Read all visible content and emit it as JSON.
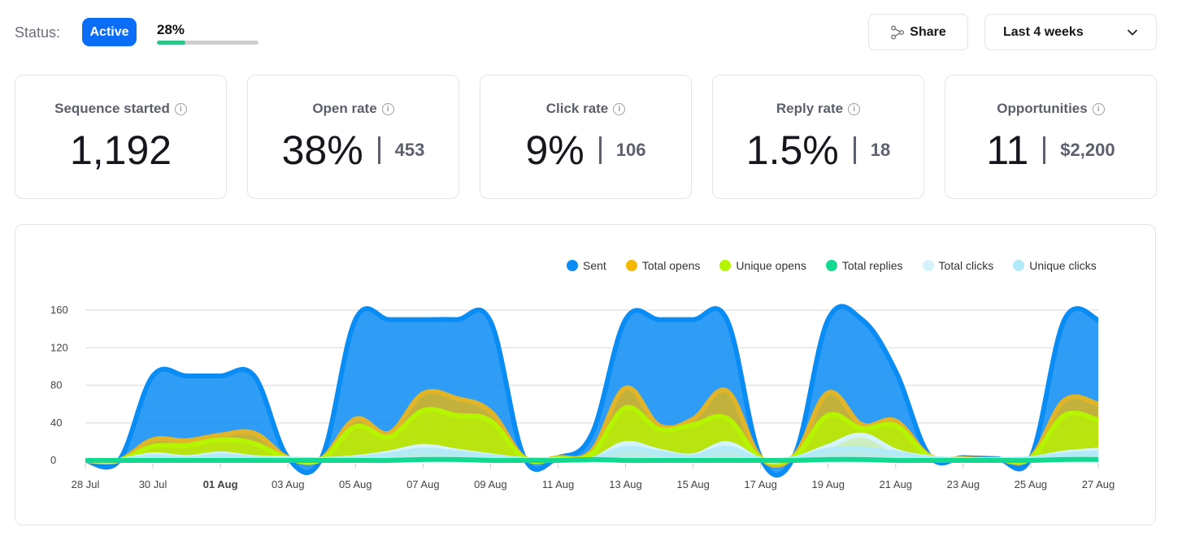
{
  "status": {
    "label": "Status:",
    "badge": "Active",
    "progress_text": "28%",
    "progress_value": 28
  },
  "toolbar": {
    "share_label": "Share",
    "range_label": "Last 4 weeks"
  },
  "cards": [
    {
      "title": "Sequence started",
      "value": "1,192"
    },
    {
      "title": "Open rate",
      "value": "38%",
      "count": "453"
    },
    {
      "title": "Click rate",
      "value": "9%",
      "count": "106"
    },
    {
      "title": "Reply rate",
      "value": "1.5%",
      "count": "18"
    },
    {
      "title": "Opportunities",
      "value": "11",
      "count": "$2,200"
    }
  ],
  "chart_data": {
    "type": "area",
    "title": "",
    "xlabel": "",
    "ylabel": "",
    "ylim": [
      0,
      160
    ],
    "yticks": [
      "0",
      "40",
      "80",
      "120",
      "160"
    ],
    "xtick_labels": [
      "28 Jul",
      "30 Jul",
      "01 Aug",
      "03 Aug",
      "05 Aug",
      "07 Aug",
      "09 Aug",
      "11 Aug",
      "13 Aug",
      "15 Aug",
      "17 Aug",
      "19 Aug",
      "21 Aug",
      "23 Aug",
      "25 Aug",
      "27 Aug"
    ],
    "highlighted_tick": "01 Aug",
    "x": [
      "28 Jul",
      "29 Jul",
      "30 Jul",
      "31 Jul",
      "01 Aug",
      "02 Aug",
      "03 Aug",
      "04 Aug",
      "05 Aug",
      "06 Aug",
      "07 Aug",
      "08 Aug",
      "09 Aug",
      "10 Aug",
      "11 Aug",
      "12 Aug",
      "13 Aug",
      "14 Aug",
      "15 Aug",
      "16 Aug",
      "17 Aug",
      "18 Aug",
      "19 Aug",
      "20 Aug",
      "21 Aug",
      "22 Aug",
      "23 Aug",
      "24 Aug",
      "25 Aug",
      "26 Aug",
      "27 Aug"
    ],
    "legend_position": "top-right",
    "grid": true,
    "series": [
      {
        "name": "Sent",
        "color": "#0a8cf5",
        "values": [
          0,
          0,
          90,
          90,
          90,
          90,
          3,
          3,
          150,
          150,
          150,
          150,
          148,
          3,
          3,
          28,
          150,
          150,
          150,
          150,
          3,
          5,
          150,
          150,
          95,
          5,
          3,
          2,
          3,
          150,
          150
        ]
      },
      {
        "name": "Total opens",
        "color": "#f5b800",
        "values": [
          0,
          0,
          22,
          21,
          27,
          29,
          3,
          2,
          44,
          29,
          71,
          66,
          52,
          3,
          3,
          10,
          77,
          37,
          44,
          74,
          3,
          5,
          72,
          38,
          42,
          5,
          2,
          1,
          3,
          64,
          60
        ]
      },
      {
        "name": "Unique opens",
        "color": "#b5f500",
        "values": [
          0,
          0,
          15,
          16,
          22,
          18,
          2,
          1,
          36,
          25,
          53,
          48,
          42,
          2,
          2,
          7,
          56,
          33,
          38,
          45,
          2,
          4,
          48,
          34,
          37,
          4,
          1,
          1,
          2,
          48,
          43
        ]
      },
      {
        "name": "Total replies",
        "color": "#12d98f",
        "values": [
          0,
          0,
          0,
          0,
          0,
          0,
          0,
          0,
          0,
          0,
          1,
          1,
          0,
          0,
          0,
          1,
          0,
          0,
          0,
          0,
          0,
          0,
          1,
          1,
          0,
          0,
          0,
          0,
          0,
          1,
          1
        ]
      },
      {
        "name": "Total clicks",
        "color": "#d4f3fb",
        "values": [
          0,
          0,
          6,
          3,
          7,
          3,
          2,
          1,
          3,
          8,
          15,
          10,
          5,
          1,
          1,
          1,
          18,
          10,
          5,
          18,
          1,
          2,
          15,
          27,
          10,
          3,
          1,
          1,
          2,
          8,
          11
        ]
      },
      {
        "name": "Unique clicks",
        "color": "#b2ebf7",
        "values": [
          0,
          0,
          4,
          2,
          5,
          2,
          1,
          1,
          2,
          6,
          11,
          8,
          4,
          1,
          1,
          1,
          13,
          8,
          4,
          13,
          1,
          2,
          11,
          12,
          8,
          2,
          1,
          1,
          2,
          6,
          8
        ]
      }
    ]
  }
}
